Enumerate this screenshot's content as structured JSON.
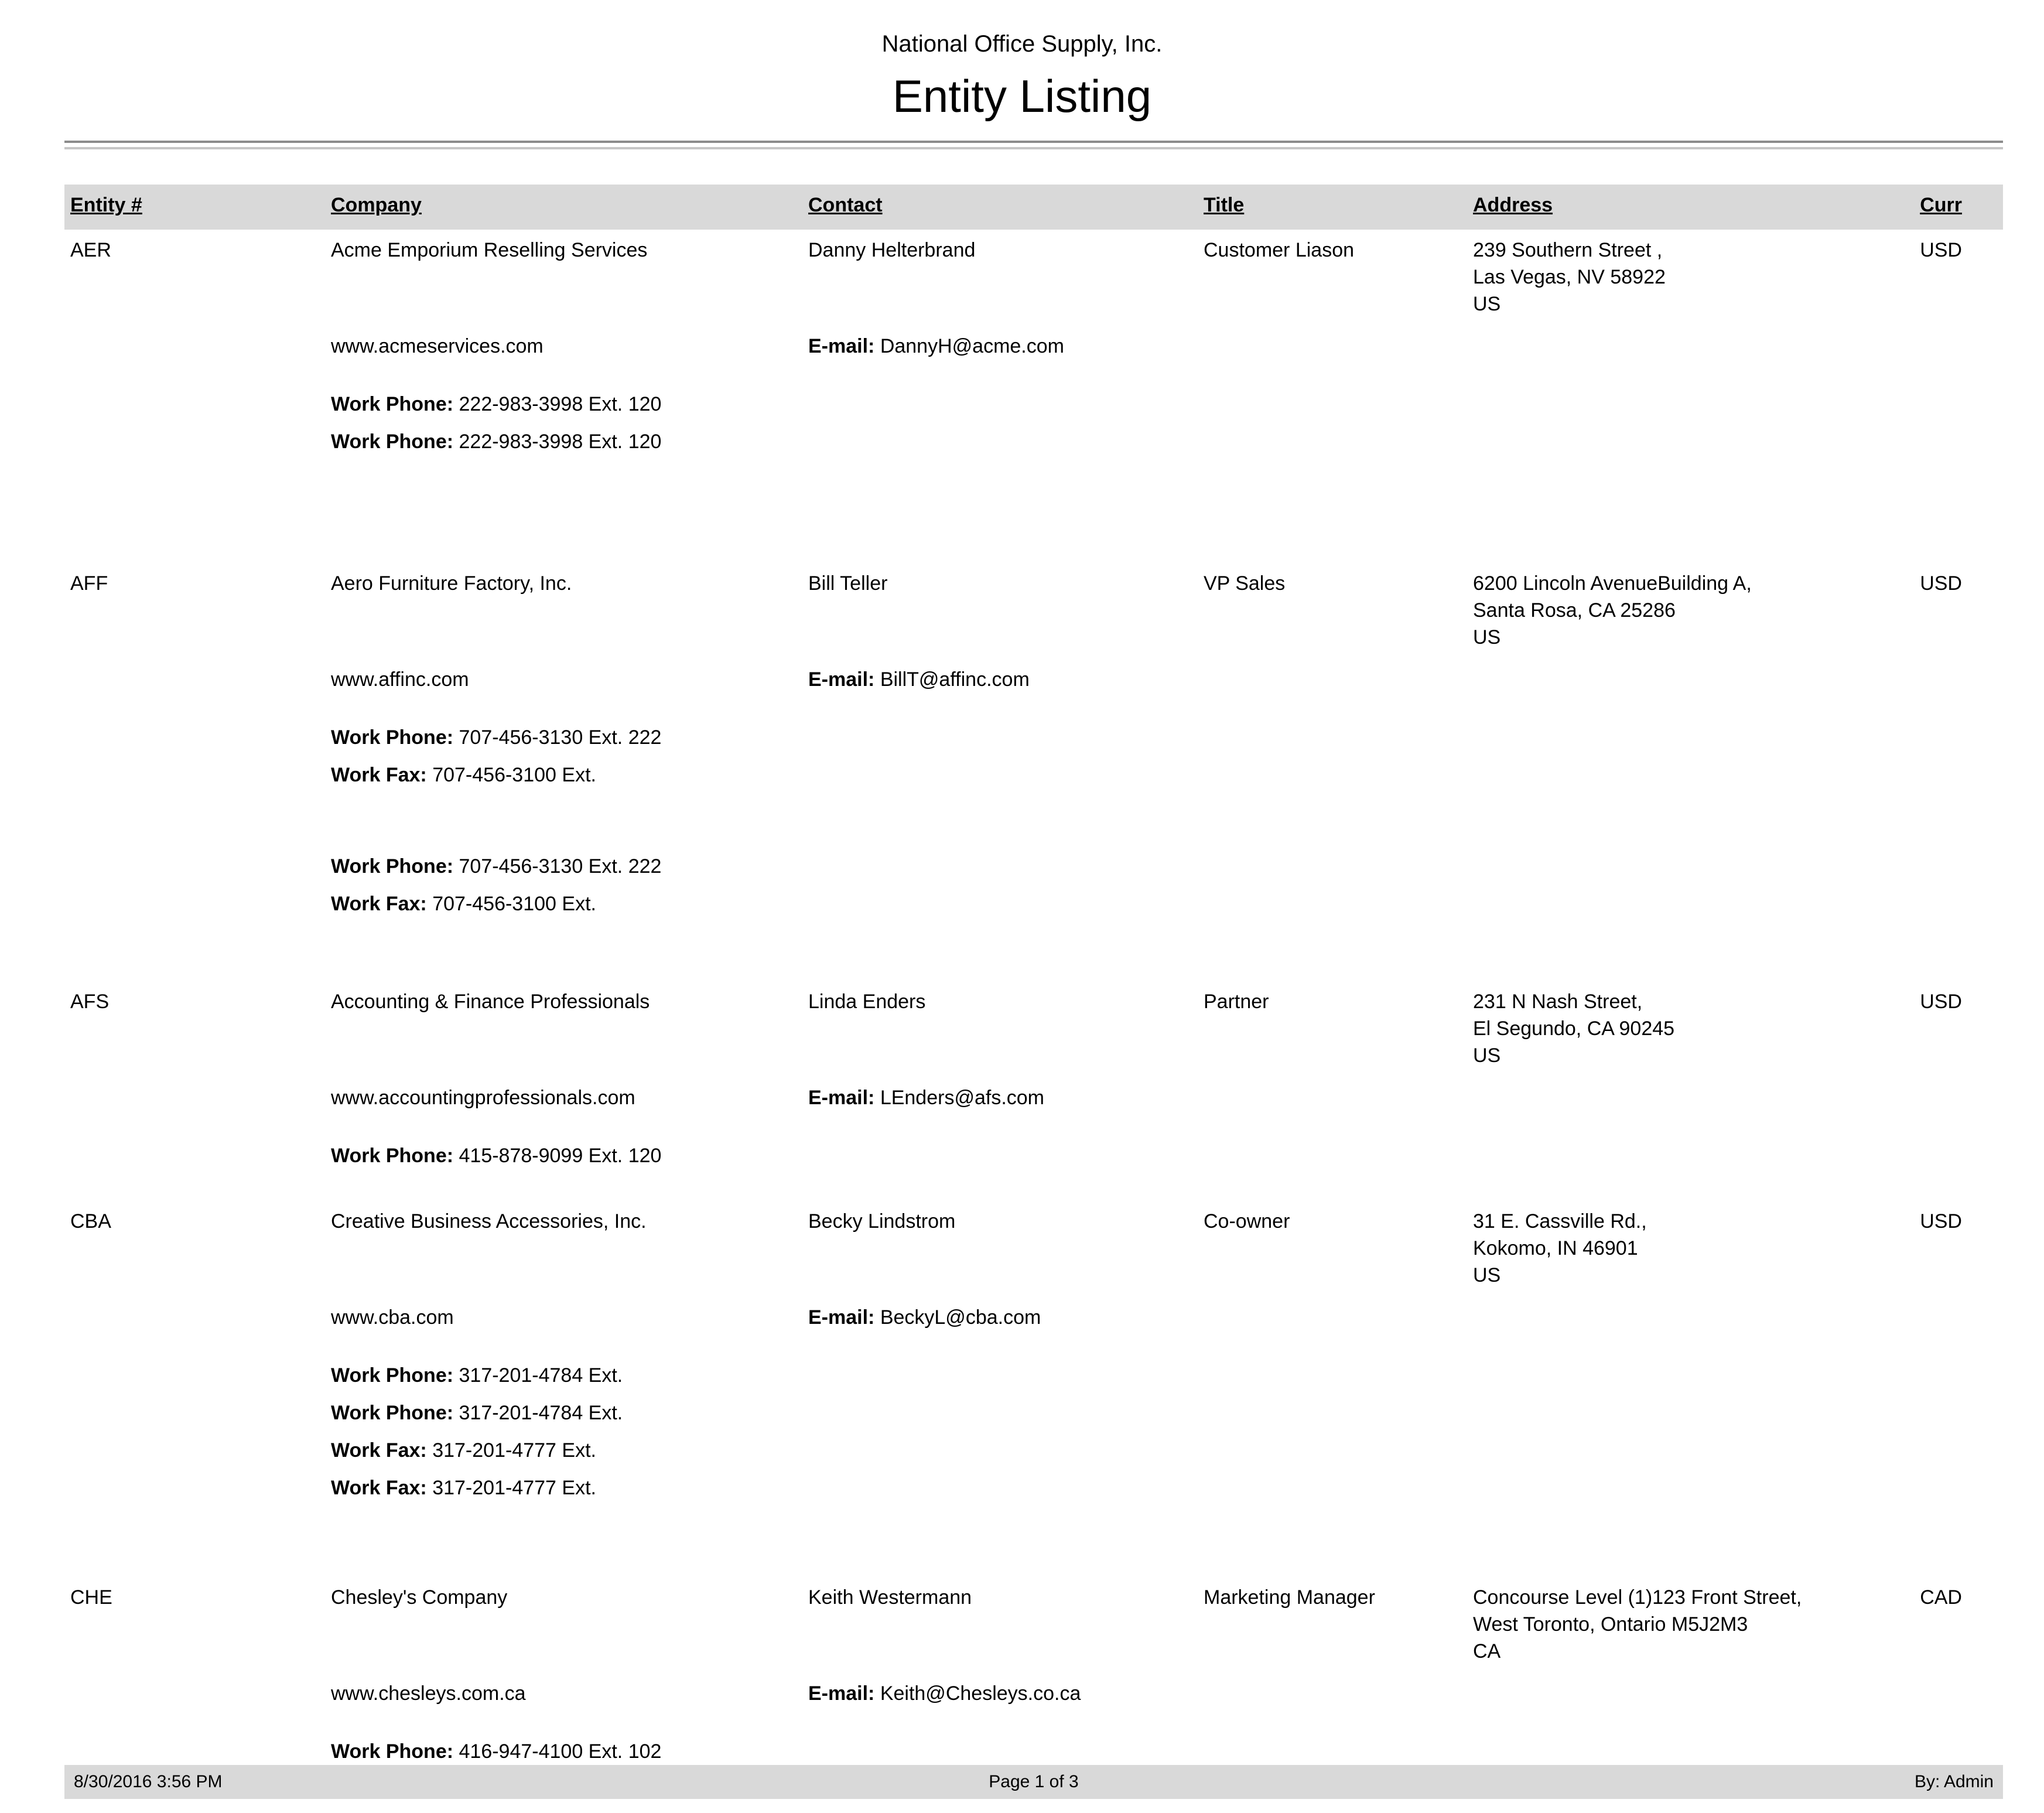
{
  "report": {
    "company_header": "National Office Supply, Inc.",
    "title": "Entity Listing"
  },
  "columns": {
    "entity": "Entity #",
    "company": "Company",
    "contact": "Contact",
    "title": "Title",
    "address": "Address",
    "curr": "Curr"
  },
  "labels": {
    "email": "E-mail:",
    "work_phone": "Work Phone:",
    "work_fax": "Work Fax:"
  },
  "colors": {
    "band": "#d9d9d9",
    "rule_dark": "#8c8c8c",
    "rule_light": "#c6c6c6"
  },
  "entities": [
    {
      "code": "AER",
      "company": "Acme Emporium Reselling Services",
      "contact": "Danny Helterbrand",
      "title": "Customer Liason",
      "address_lines": [
        "239 Southern Street ,",
        "Las Vegas, NV 58922",
        "US"
      ],
      "curr": "USD",
      "website": "www.acmeservices.com",
      "email": "DannyH@acme.com",
      "phone_groups": [
        [
          {
            "label": "Work Phone:",
            "value": "222-983-3998 Ext. 120"
          },
          {
            "label": "Work Phone:",
            "value": "222-983-3998 Ext. 120"
          }
        ]
      ]
    },
    {
      "code": "AFF",
      "company": "Aero Furniture Factory, Inc.",
      "contact": "Bill Teller",
      "title": "VP Sales",
      "address_lines": [
        "6200 Lincoln AvenueBuilding A,",
        "Santa Rosa, CA 25286",
        "US"
      ],
      "curr": "USD",
      "website": "www.affinc.com",
      "email": "BillT@affinc.com",
      "phone_groups": [
        [
          {
            "label": "Work Phone:",
            "value": "707-456-3130 Ext. 222"
          },
          {
            "label": "Work Fax:",
            "value": "707-456-3100 Ext."
          }
        ],
        [
          {
            "label": "Work Phone:",
            "value": "707-456-3130 Ext. 222"
          },
          {
            "label": "Work Fax:",
            "value": "707-456-3100 Ext."
          }
        ]
      ]
    },
    {
      "code": "AFS",
      "company": "Accounting & Finance Professionals",
      "contact": "Linda Enders",
      "title": "Partner",
      "address_lines": [
        "231 N Nash Street,",
        "El Segundo, CA 90245",
        "US"
      ],
      "curr": "USD",
      "website": "www.accountingprofessionals.com",
      "email": "LEnders@afs.com",
      "phone_groups": [
        [
          {
            "label": "Work Phone:",
            "value": "415-878-9099 Ext. 120"
          }
        ]
      ]
    },
    {
      "code": "CBA",
      "company": "Creative Business Accessories, Inc.",
      "contact": "Becky Lindstrom",
      "title": "Co-owner",
      "address_lines": [
        "31 E. Cassville Rd.,",
        "Kokomo, IN 46901",
        "US"
      ],
      "curr": "USD",
      "website": "www.cba.com",
      "email": "BeckyL@cba.com",
      "phone_groups": [
        [
          {
            "label": "Work Phone:",
            "value": "317-201-4784 Ext."
          },
          {
            "label": "Work Phone:",
            "value": "317-201-4784 Ext."
          },
          {
            "label": "Work Fax:",
            "value": "317-201-4777 Ext."
          },
          {
            "label": "Work Fax:",
            "value": "317-201-4777 Ext."
          }
        ]
      ]
    },
    {
      "code": "CHE",
      "company": "Chesley's Company",
      "contact": "Keith Westermann",
      "title": "Marketing Manager",
      "address_lines": [
        "Concourse Level (1)123 Front Street,",
        "West Toronto, Ontario M5J2M3",
        "CA"
      ],
      "curr": "CAD",
      "website": "www.chesleys.com.ca",
      "email": "Keith@Chesleys.co.ca",
      "phone_groups": [
        [
          {
            "label": "Work Phone:",
            "value": "416-947-4100 Ext. 102"
          }
        ]
      ]
    }
  ],
  "footer": {
    "datetime": "8/30/2016 3:56 PM",
    "page": "Page 1 of 3",
    "by": "By: Admin"
  }
}
